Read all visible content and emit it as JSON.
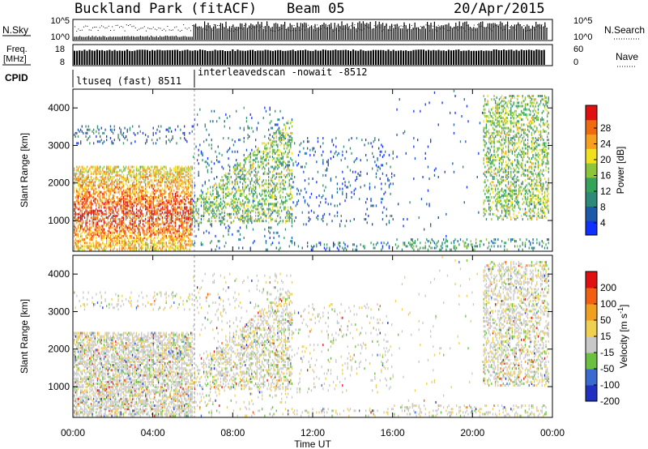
{
  "header": {
    "title": "Buckland Park (fitACF)",
    "beam": "Beam 05",
    "date": "20/Apr/2015"
  },
  "top_panels": {
    "nsky_label": "N.Sky",
    "nsky_ticks": [
      "10^5",
      "10^0"
    ],
    "nsearch_label": "N.Search",
    "nsearch_ticks": [
      "10^5",
      "10^0"
    ],
    "freq_label_1": "Freq.",
    "freq_label_2": "[MHz]",
    "freq_ticks": [
      "18",
      "8"
    ],
    "nave_label": "Nave",
    "nave_ticks": [
      "60",
      "0"
    ],
    "cpid_label": "CPID",
    "cpid_segments": [
      "ltuseq (fast) 8511",
      "interleavedscan -nowait -8512"
    ]
  },
  "chart_data": [
    {
      "type": "heatmap",
      "name": "power-panel",
      "ylabel": "Slant Range [km]",
      "yticks": [
        "4000",
        "3000",
        "2000",
        "1000"
      ],
      "ylim": [
        180,
        4500
      ],
      "colorbar_label": "Power [dB]",
      "colorbar_ticks": [
        "28",
        "24",
        "20",
        "16",
        "12",
        "8",
        "4"
      ],
      "colors": [
        "#1030ff",
        "#1a5aa8",
        "#2e8a78",
        "#35a35a",
        "#8cc43a",
        "#f0e020",
        "#f7a020",
        "#f06a10",
        "#e01010"
      ]
    },
    {
      "type": "heatmap",
      "name": "velocity-panel",
      "ylabel": "Slant Range [km]",
      "yticks": [
        "4000",
        "3000",
        "2000",
        "1000"
      ],
      "ylim": [
        180,
        4500
      ],
      "colorbar_label": "Velocity [m s^-1]",
      "colorbar_ticks": [
        "200",
        "100",
        "50",
        "15",
        "-15",
        "-50",
        "-100",
        "-200"
      ],
      "colors": [
        "#2030c0",
        "#3a6ad0",
        "#6cc040",
        "#c8c8c8",
        "#f0d050",
        "#f0a020",
        "#f06010",
        "#e01010"
      ]
    }
  ],
  "x_axis": {
    "ticks": [
      "00:00",
      "04:00",
      "08:00",
      "12:00",
      "16:00",
      "20:00",
      "00:00"
    ],
    "label": "Time UT"
  }
}
